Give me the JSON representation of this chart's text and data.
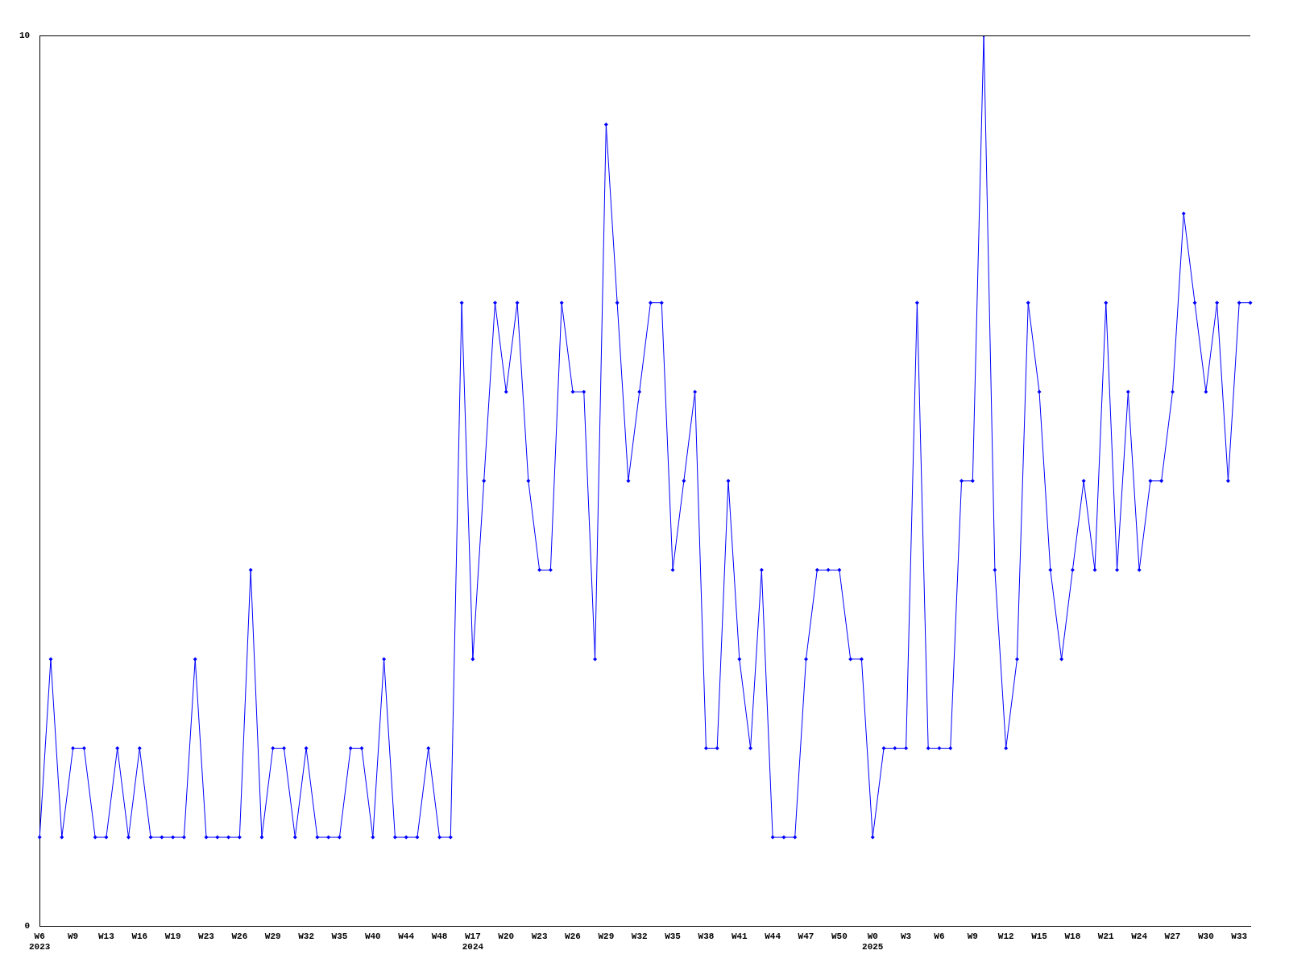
{
  "chart_data": {
    "type": "line",
    "categories": [
      "W6\n2023",
      null,
      null,
      "W9",
      null,
      null,
      "W13",
      null,
      null,
      "W16",
      null,
      null,
      "W19",
      null,
      null,
      "W23",
      null,
      null,
      "W26",
      null,
      null,
      "W29",
      null,
      null,
      "W32",
      null,
      null,
      "W35",
      null,
      null,
      "W40",
      null,
      null,
      "W44",
      null,
      null,
      "W48",
      null,
      null,
      "W17\n2024",
      null,
      null,
      "W20",
      null,
      null,
      "W23",
      null,
      null,
      "W26",
      null,
      null,
      "W29",
      null,
      null,
      "W32",
      null,
      null,
      "W35",
      null,
      null,
      "W38",
      null,
      null,
      "W41",
      null,
      null,
      "W44",
      null,
      null,
      "W47",
      null,
      null,
      "W50",
      null,
      null,
      "W0\n2025",
      null,
      null,
      "W3",
      null,
      null,
      "W6",
      null,
      null,
      "W9",
      null,
      null,
      "W12",
      null,
      null,
      "W15",
      null,
      null,
      "W18",
      null,
      null,
      "W21",
      null,
      null,
      "W24",
      null,
      null,
      "W27",
      null,
      null,
      "W30",
      null,
      null,
      "W33",
      null
    ],
    "series": [
      {
        "color": "#0000ff",
        "values": [
          1,
          3,
          1,
          2,
          2,
          1,
          1,
          2,
          1,
          2,
          1,
          1,
          1,
          1,
          3,
          1,
          1,
          1,
          1,
          4,
          1,
          2,
          2,
          1,
          2,
          1,
          1,
          1,
          2,
          2,
          1,
          3,
          1,
          1,
          1,
          2,
          1,
          1,
          7,
          3,
          5,
          7,
          6,
          7,
          5,
          4,
          4,
          7,
          6,
          6,
          3,
          9,
          7,
          5,
          6,
          7,
          7,
          4,
          5,
          6,
          2,
          2,
          5,
          3,
          2,
          4,
          1,
          1,
          1,
          3,
          4,
          4,
          4,
          3,
          3,
          1,
          2,
          2,
          2,
          7,
          2,
          2,
          2,
          5,
          5,
          10,
          4,
          2,
          3,
          7,
          6,
          4,
          3,
          4,
          5,
          4,
          7,
          4,
          6,
          4,
          5,
          5,
          6,
          8,
          7,
          6,
          7,
          5,
          7,
          7
        ]
      }
    ],
    "ylim": [
      0,
      10
    ],
    "yticks": [
      0,
      10
    ],
    "legend": false,
    "marker": "diamond",
    "line_style": "solid"
  }
}
